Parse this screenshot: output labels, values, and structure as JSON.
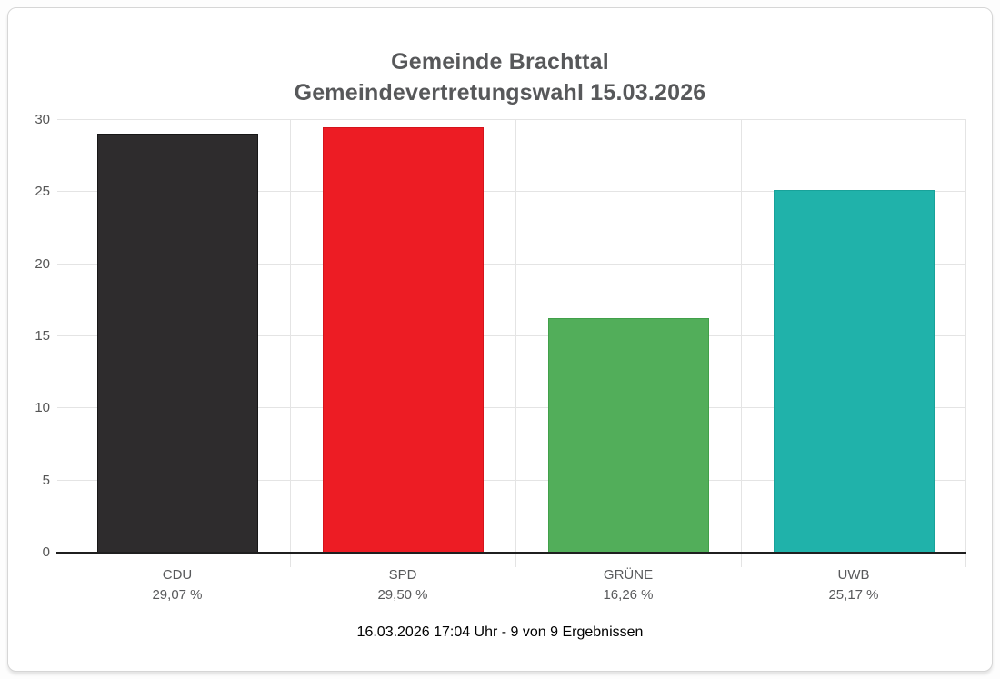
{
  "card": {
    "title_line1": "Gemeinde Brachttal",
    "title_line2": "Gemeindevertretungswahl 15.03.2026",
    "footer": "16.03.2026 17:04 Uhr - 9 von 9 Ergebnissen"
  },
  "chart_data": {
    "type": "bar",
    "title": "Gemeinde Brachttal Gemeindevertretungswahl 15.03.2026",
    "categories": [
      "CDU",
      "SPD",
      "GRÜNE",
      "UWB"
    ],
    "values": [
      29.07,
      29.5,
      16.26,
      25.17
    ],
    "value_labels": [
      "29,07 %",
      "29,50 %",
      "16,26 %",
      "25,17 %"
    ],
    "bar_colors": [
      "#2e2c2d",
      "#ed1c24",
      "#52ae5a",
      "#20b2aa"
    ],
    "bar_border_colors": [
      "#171717",
      "#d4141c",
      "#41a049",
      "#18a29a"
    ],
    "xlabel": "",
    "ylabel": "",
    "ylim": [
      0,
      30
    ],
    "yticks": [
      0,
      5,
      10,
      15,
      20,
      25,
      30
    ],
    "grid": true,
    "legend_position": "none",
    "annotation": "16.03.2026 17:04 Uhr - 9 von 9 Ergebnissen"
  }
}
